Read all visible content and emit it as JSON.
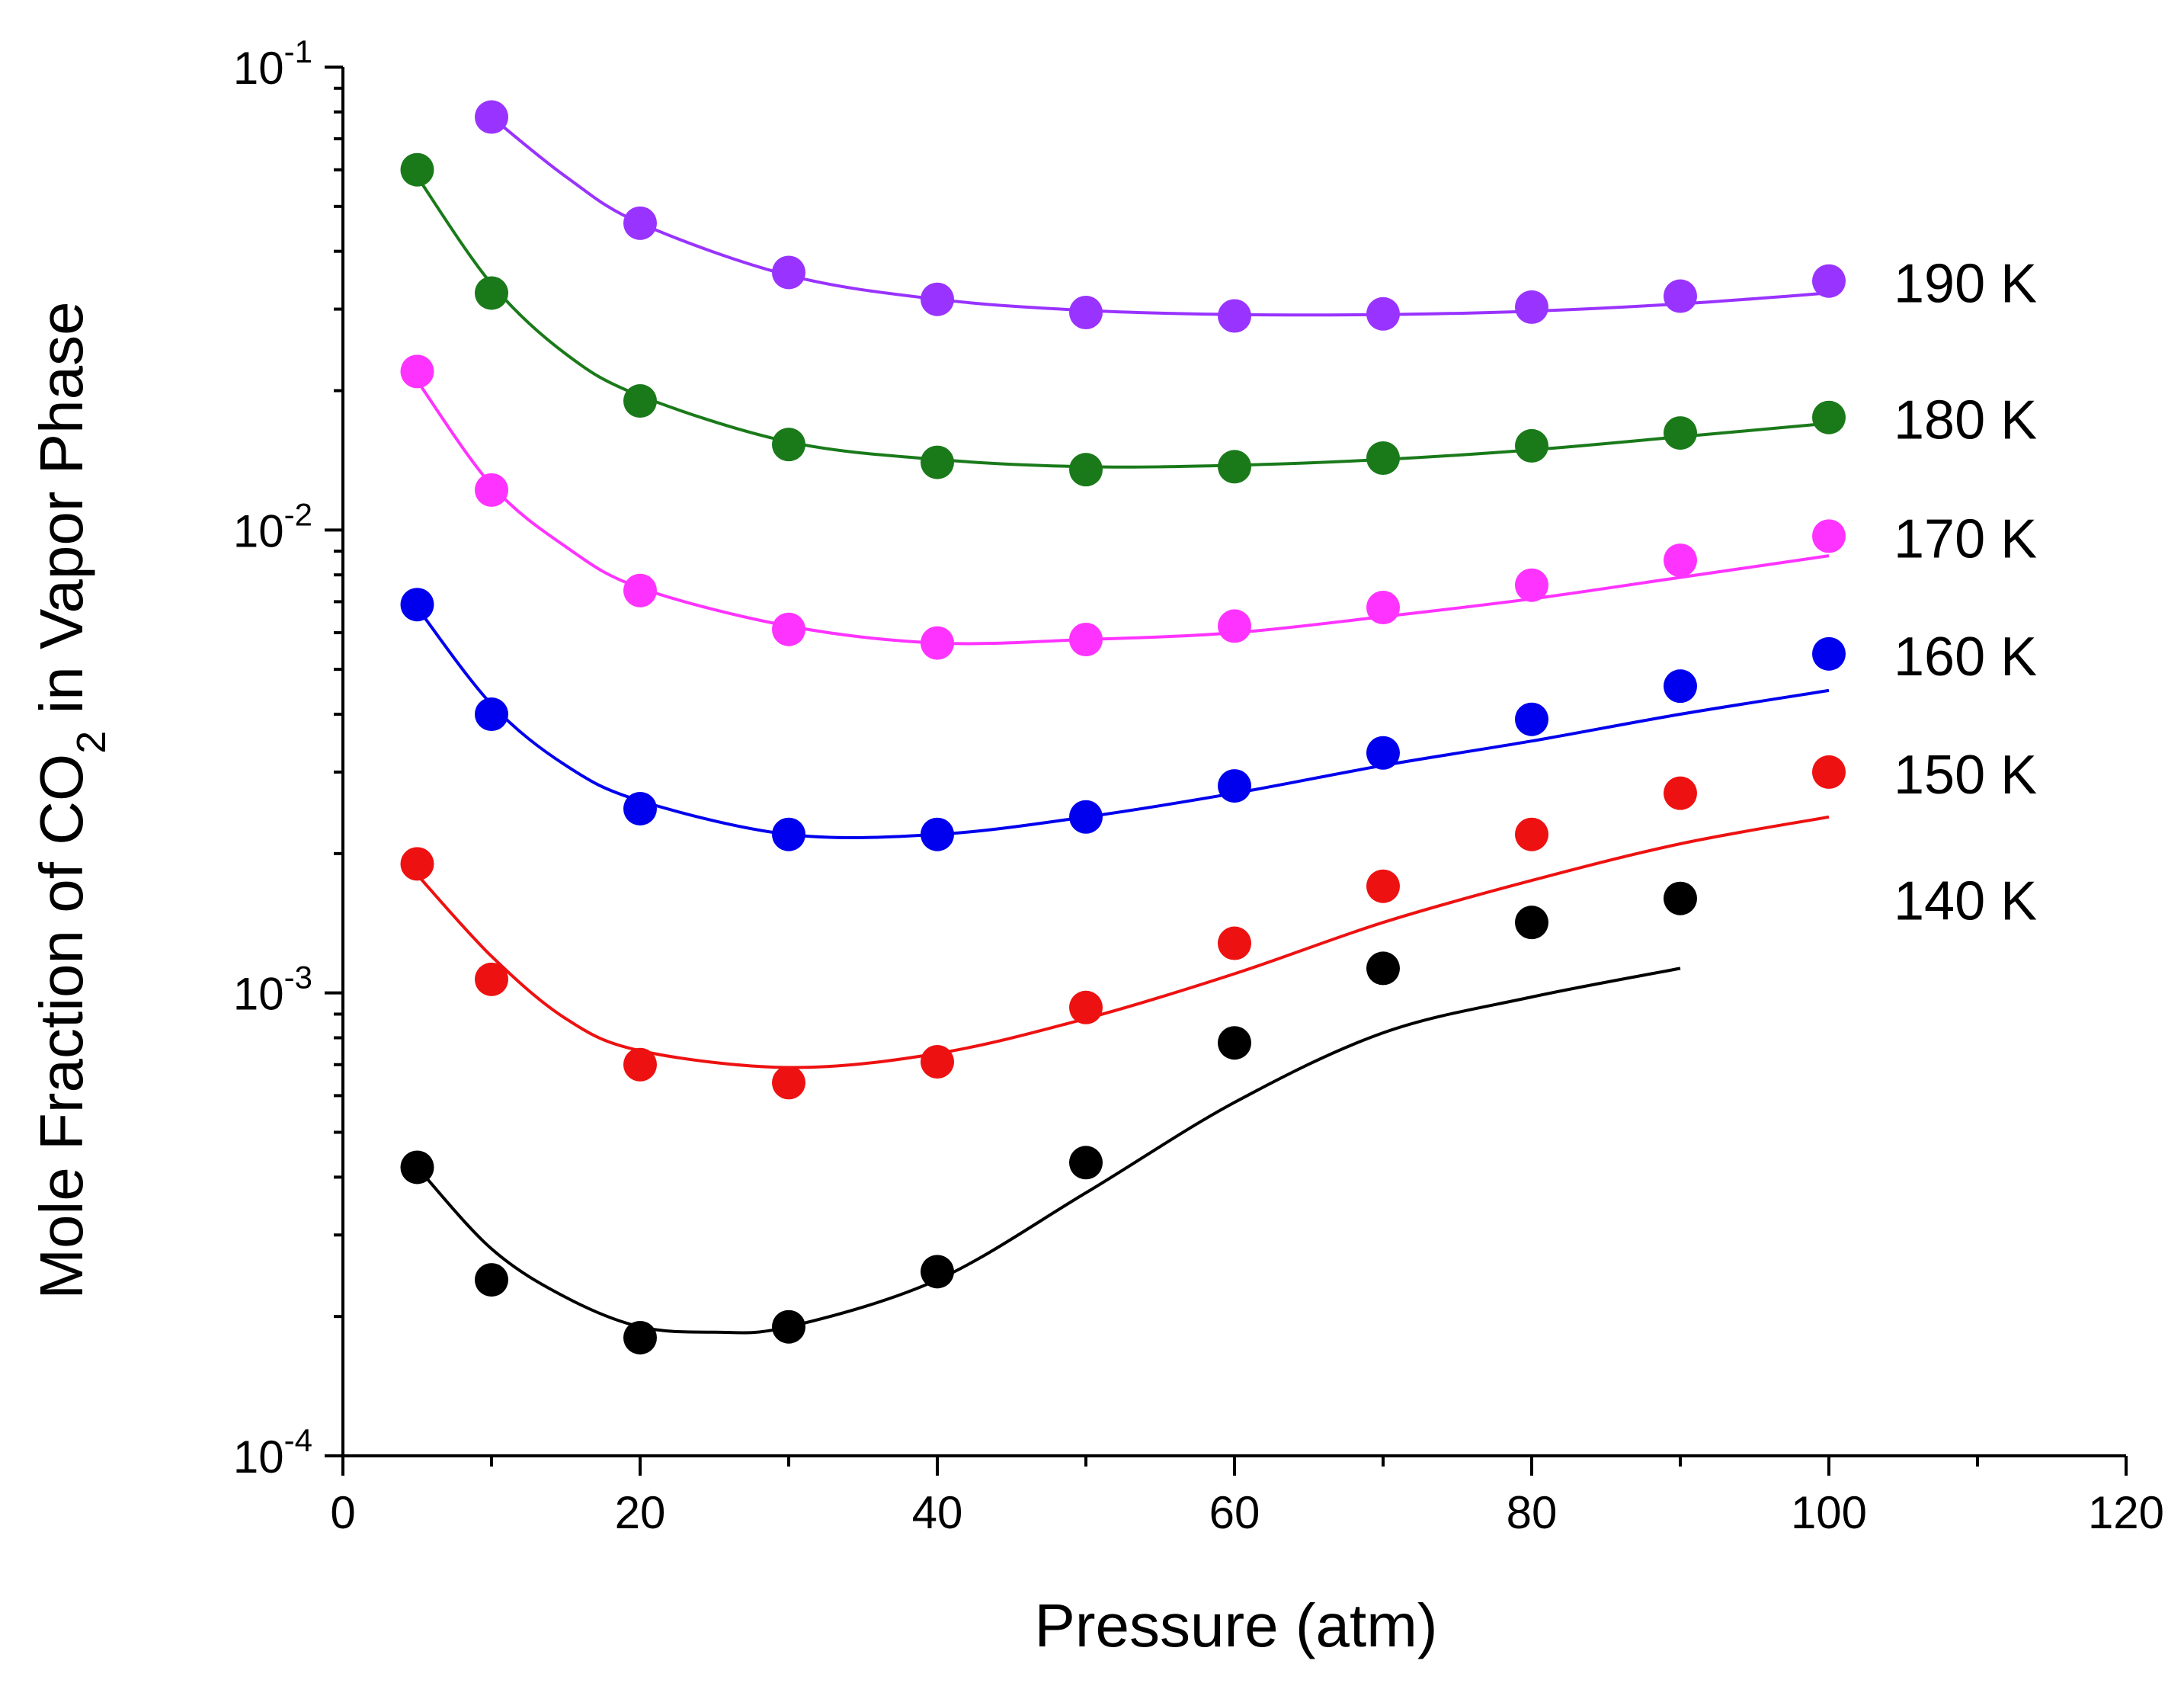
{
  "chart_data": {
    "type": "scatter",
    "xlabel": "Pressure (atm)",
    "ylabel": {
      "prefix": "Mole Fraction of CO",
      "subscript": "2",
      "suffix": " in Vapor Phase"
    },
    "xlim": [
      0,
      120
    ],
    "ylim": [
      0.0001,
      0.1
    ],
    "yscale": "log",
    "x_ticks": [
      0,
      20,
      40,
      60,
      80,
      100,
      120
    ],
    "x_tick_labels": [
      "0",
      "20",
      "40",
      "60",
      "80",
      "100",
      "120"
    ],
    "y_ticks": [
      {
        "value": 0.1,
        "base": "10",
        "exp": "-1"
      },
      {
        "value": 0.01,
        "base": "10",
        "exp": "-2"
      },
      {
        "value": 0.001,
        "base": "10",
        "exp": "-3"
      },
      {
        "value": 0.0001,
        "base": "10",
        "exp": "-4"
      }
    ],
    "grid": false,
    "series": [
      {
        "name": "190 K",
        "color": "#9933ff",
        "points": [
          [
            10,
            0.078
          ],
          [
            20,
            0.046
          ],
          [
            30,
            0.036
          ],
          [
            40,
            0.0315
          ],
          [
            50,
            0.0295
          ],
          [
            60,
            0.029
          ],
          [
            70,
            0.0293
          ],
          [
            80,
            0.0303
          ],
          [
            90,
            0.032
          ],
          [
            100,
            0.0345
          ]
        ],
        "fit": [
          [
            10,
            0.078
          ],
          [
            15,
            0.058
          ],
          [
            20,
            0.046
          ],
          [
            30,
            0.0355
          ],
          [
            40,
            0.0315
          ],
          [
            50,
            0.0298
          ],
          [
            60,
            0.0292
          ],
          [
            70,
            0.0292
          ],
          [
            80,
            0.0297
          ],
          [
            90,
            0.0308
          ],
          [
            100,
            0.0325
          ]
        ]
      },
      {
        "name": "180 K",
        "color": "#1a7a1a",
        "points": [
          [
            5,
            0.06
          ],
          [
            10,
            0.0325
          ],
          [
            20,
            0.019
          ],
          [
            30,
            0.0153
          ],
          [
            40,
            0.014
          ],
          [
            50,
            0.0135
          ],
          [
            60,
            0.0137
          ],
          [
            70,
            0.0143
          ],
          [
            80,
            0.0152
          ],
          [
            90,
            0.0162
          ],
          [
            100,
            0.0175
          ]
        ],
        "fit": [
          [
            5,
            0.058
          ],
          [
            10,
            0.034
          ],
          [
            15,
            0.024
          ],
          [
            20,
            0.0195
          ],
          [
            30,
            0.0155
          ],
          [
            40,
            0.0142
          ],
          [
            50,
            0.0137
          ],
          [
            60,
            0.0138
          ],
          [
            70,
            0.0142
          ],
          [
            80,
            0.0149
          ],
          [
            90,
            0.0159
          ],
          [
            100,
            0.017
          ]
        ]
      },
      {
        "name": "170 K",
        "color": "#ff33ff",
        "points": [
          [
            5,
            0.022
          ],
          [
            10,
            0.0122
          ],
          [
            20,
            0.0074
          ],
          [
            30,
            0.0061
          ],
          [
            40,
            0.0057
          ],
          [
            50,
            0.0058
          ],
          [
            60,
            0.0062
          ],
          [
            70,
            0.0068
          ],
          [
            80,
            0.0076
          ],
          [
            90,
            0.0086
          ],
          [
            100,
            0.0097
          ]
        ],
        "fit": [
          [
            5,
            0.021
          ],
          [
            10,
            0.0125
          ],
          [
            15,
            0.0092
          ],
          [
            20,
            0.0075
          ],
          [
            30,
            0.0062
          ],
          [
            40,
            0.0057
          ],
          [
            50,
            0.0058
          ],
          [
            60,
            0.006
          ],
          [
            70,
            0.0065
          ],
          [
            80,
            0.0071
          ],
          [
            90,
            0.0079
          ],
          [
            100,
            0.0088
          ]
        ]
      },
      {
        "name": "160 K",
        "color": "#0000ee",
        "points": [
          [
            5,
            0.0069
          ],
          [
            10,
            0.004
          ],
          [
            20,
            0.0025
          ],
          [
            30,
            0.0022
          ],
          [
            40,
            0.0022
          ],
          [
            50,
            0.0024
          ],
          [
            60,
            0.0028
          ],
          [
            70,
            0.0033
          ],
          [
            80,
            0.0039
          ],
          [
            90,
            0.0046
          ],
          [
            100,
            0.0054
          ]
        ],
        "fit": [
          [
            5,
            0.0068
          ],
          [
            10,
            0.0042
          ],
          [
            15,
            0.0031
          ],
          [
            20,
            0.0026
          ],
          [
            30,
            0.0022
          ],
          [
            40,
            0.0022
          ],
          [
            50,
            0.0024
          ],
          [
            60,
            0.0027
          ],
          [
            70,
            0.0031
          ],
          [
            80,
            0.0035
          ],
          [
            90,
            0.004
          ],
          [
            100,
            0.0045
          ]
        ]
      },
      {
        "name": "150 K",
        "color": "#ee1111",
        "points": [
          [
            5,
            0.0019
          ],
          [
            10,
            0.00107
          ],
          [
            20,
            0.0007
          ],
          [
            30,
            0.00064
          ],
          [
            40,
            0.00071
          ],
          [
            50,
            0.00093
          ],
          [
            60,
            0.00128
          ],
          [
            70,
            0.0017
          ],
          [
            80,
            0.0022
          ],
          [
            90,
            0.0027
          ],
          [
            100,
            0.003
          ]
        ],
        "fit": [
          [
            5,
            0.0018
          ],
          [
            10,
            0.0012
          ],
          [
            15,
            0.00088
          ],
          [
            20,
            0.00075
          ],
          [
            30,
            0.00069
          ],
          [
            40,
            0.00074
          ],
          [
            50,
            0.00088
          ],
          [
            60,
            0.0011
          ],
          [
            70,
            0.00142
          ],
          [
            80,
            0.00175
          ],
          [
            90,
            0.0021
          ],
          [
            100,
            0.0024
          ]
        ]
      },
      {
        "name": "140 K",
        "color": "#000000",
        "points": [
          [
            5,
            0.00042
          ],
          [
            10,
            0.00024
          ],
          [
            20,
            0.00018
          ],
          [
            30,
            0.00019
          ],
          [
            40,
            0.00025
          ],
          [
            50,
            0.00043
          ],
          [
            60,
            0.00078
          ],
          [
            70,
            0.00113
          ],
          [
            80,
            0.00142
          ],
          [
            90,
            0.0016
          ]
        ],
        "fit": [
          [
            5,
            0.00042
          ],
          [
            10,
            0.00028
          ],
          [
            15,
            0.00022
          ],
          [
            20,
            0.00019
          ],
          [
            25,
            0.000185
          ],
          [
            30,
            0.00019
          ],
          [
            40,
            0.00024
          ],
          [
            50,
            0.00037
          ],
          [
            60,
            0.00058
          ],
          [
            70,
            0.00082
          ],
          [
            80,
            0.00098
          ],
          [
            90,
            0.00113
          ]
        ]
      }
    ]
  }
}
